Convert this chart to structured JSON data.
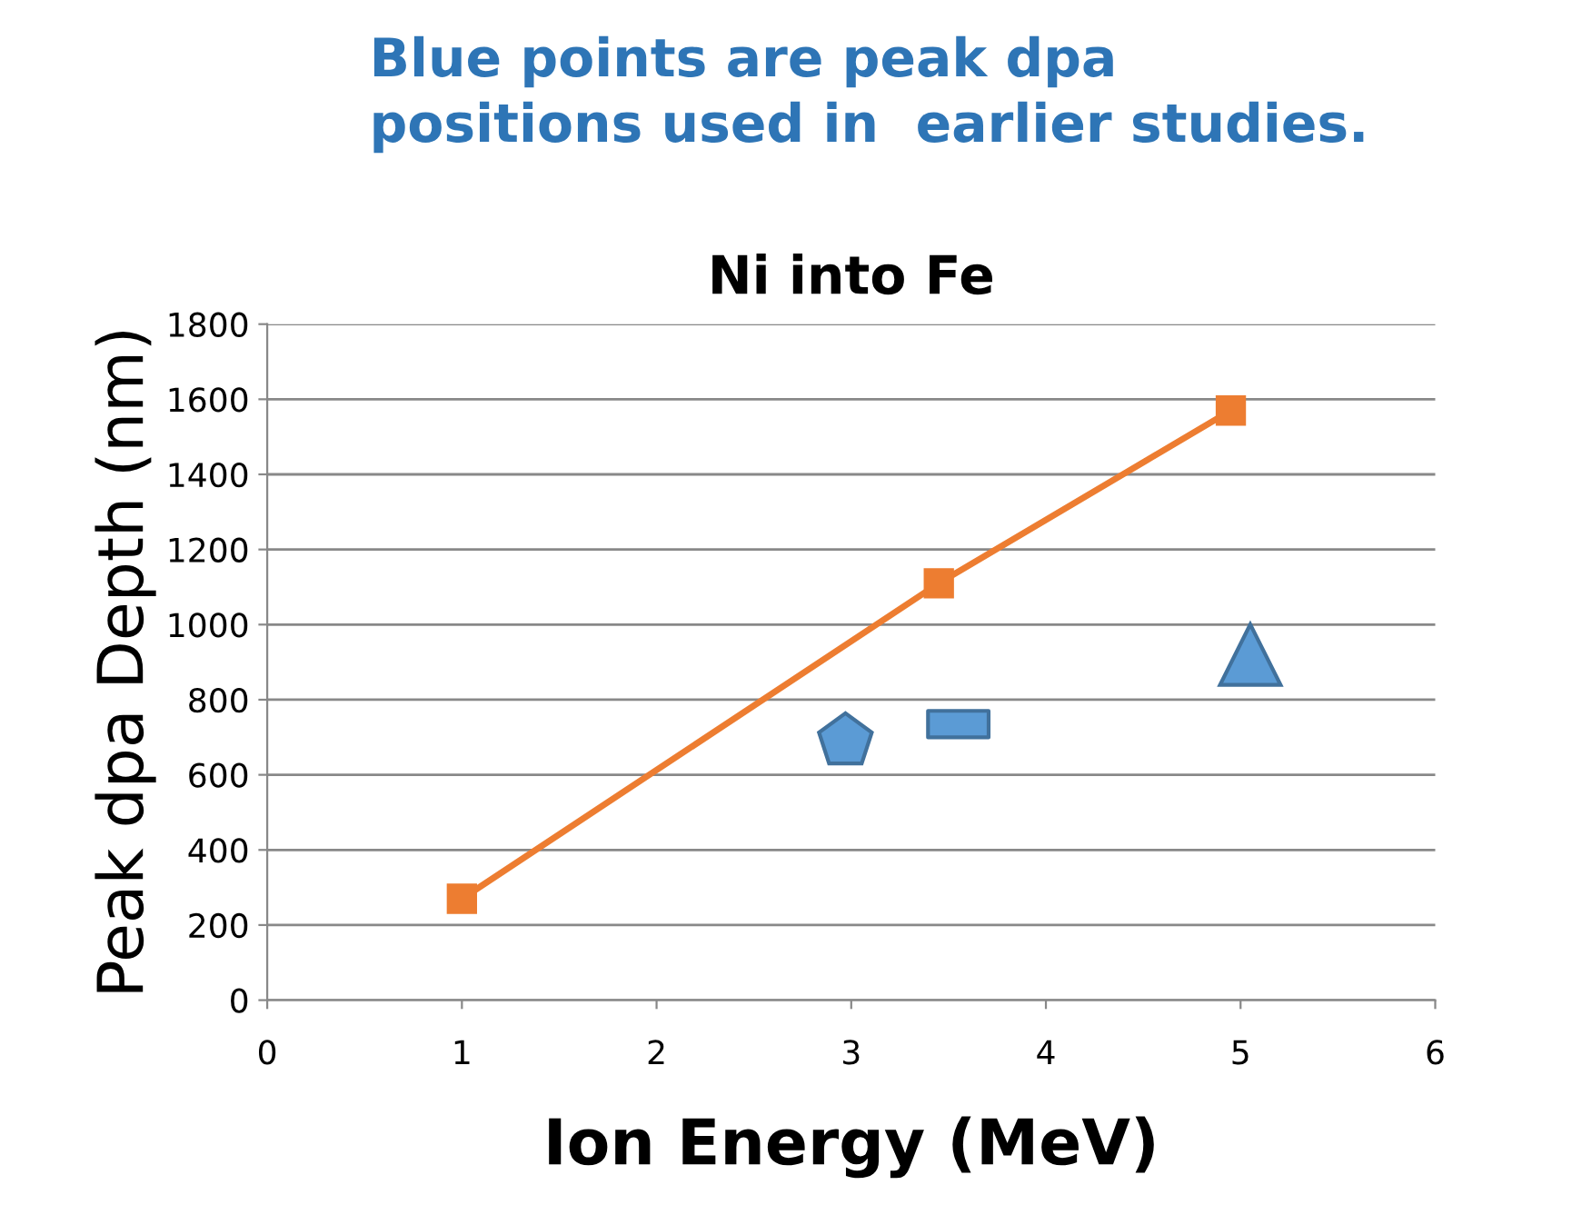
{
  "chart_data": {
    "type": "scatter",
    "title": "Ni into Fe",
    "xlabel": "Ion Energy (MeV)",
    "ylabel": "Peak dpa Depth (nm)",
    "annotations": [
      "Blue points are peak dpa\npositions used in  earlier studies."
    ],
    "xlim": [
      0,
      6
    ],
    "xticks": [
      0,
      1,
      2,
      3,
      4,
      5,
      6
    ],
    "ylim": [
      0,
      1800
    ],
    "yticks": [
      0,
      200,
      400,
      600,
      800,
      1000,
      1200,
      1400,
      1600,
      1800
    ],
    "grid": "y",
    "series": [
      {
        "type": "line",
        "color": "#ed7d31",
        "marker": "square",
        "x": [
          1,
          3.45,
          4.95
        ],
        "values": [
          270,
          1110,
          1570
        ]
      },
      {
        "color": "#5b9bd5",
        "x": [
          2.97
        ],
        "values": [
          690
        ]
      },
      {
        "color": "#5b9bd5",
        "marker": "square",
        "x": [
          3.55
        ],
        "values": [
          735
        ]
      },
      {
        "color": "#5b9bd5",
        "marker": "triangle",
        "x": [
          5.05
        ],
        "values": [
          920
        ]
      }
    ]
  }
}
